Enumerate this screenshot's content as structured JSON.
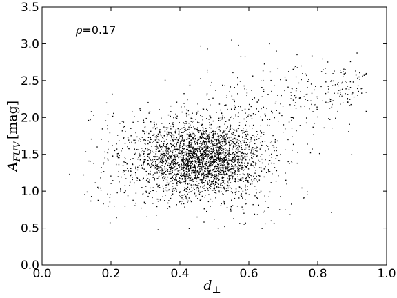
{
  "chart_data": {
    "type": "scatter",
    "title": "",
    "xlabel": {
      "base": "d",
      "sub": "⊥"
    },
    "ylabel": {
      "base": "A",
      "sub": "FUV",
      "unit": "[mag]"
    },
    "xlim": [
      0.0,
      1.0
    ],
    "ylim": [
      0.0,
      3.5
    ],
    "xticks": [
      "0.0",
      "0.2",
      "0.4",
      "0.6",
      "0.8",
      "1.0"
    ],
    "yticks": [
      "0.0",
      "0.5",
      "1.0",
      "1.5",
      "2.0",
      "2.5",
      "3.0",
      "3.5"
    ],
    "annotation": {
      "symbol": "ρ",
      "text": "=0.17"
    },
    "grid": false,
    "marker_color": "#000000",
    "generator": {
      "seed": 12345,
      "clusters": [
        {
          "n": 2200,
          "mx": 0.47,
          "sx": 0.085,
          "my": 1.42,
          "sy": 0.24
        },
        {
          "n": 350,
          "mx": 0.36,
          "sx": 0.1,
          "my": 1.6,
          "sy": 0.3
        },
        {
          "n": 250,
          "mx": 0.56,
          "sx": 0.1,
          "my": 1.8,
          "sy": 0.4
        },
        {
          "n": 150,
          "mx": 0.75,
          "sx": 0.09,
          "my": 2.25,
          "sy": 0.22
        },
        {
          "n": 60,
          "mx": 0.88,
          "sx": 0.04,
          "my": 2.4,
          "sy": 0.12
        },
        {
          "n": 80,
          "mx": 0.3,
          "sx": 0.1,
          "my": 1.0,
          "sy": 0.2
        },
        {
          "n": 60,
          "mx": 0.6,
          "sx": 0.1,
          "my": 0.9,
          "sy": 0.2
        },
        {
          "n": 40,
          "mx": 0.2,
          "sx": 0.04,
          "my": 1.55,
          "sy": 0.35
        }
      ],
      "outliers": [
        [
          0.08,
          1.23
        ],
        [
          0.14,
          1.97
        ],
        [
          0.135,
          1.96
        ],
        [
          0.15,
          2.03
        ],
        [
          0.16,
          1.6
        ],
        [
          0.17,
          1.18
        ],
        [
          0.55,
          3.05
        ],
        [
          0.57,
          2.98
        ],
        [
          0.46,
          2.97
        ],
        [
          0.48,
          2.93
        ],
        [
          0.66,
          3.0
        ],
        [
          0.68,
          2.9
        ],
        [
          0.74,
          2.85
        ],
        [
          0.92,
          2.55
        ],
        [
          0.91,
          2.63
        ],
        [
          0.93,
          2.56
        ],
        [
          0.84,
          0.71
        ],
        [
          0.45,
          0.65
        ],
        [
          0.47,
          0.58
        ],
        [
          0.53,
          0.52
        ],
        [
          0.5,
          0.62
        ],
        [
          0.3,
          0.83
        ],
        [
          0.76,
          0.91
        ],
        [
          0.77,
          0.99
        ],
        [
          0.88,
          2.65
        ],
        [
          0.94,
          2.58
        ],
        [
          0.86,
          2.47
        ],
        [
          0.81,
          2.42
        ]
      ]
    }
  }
}
